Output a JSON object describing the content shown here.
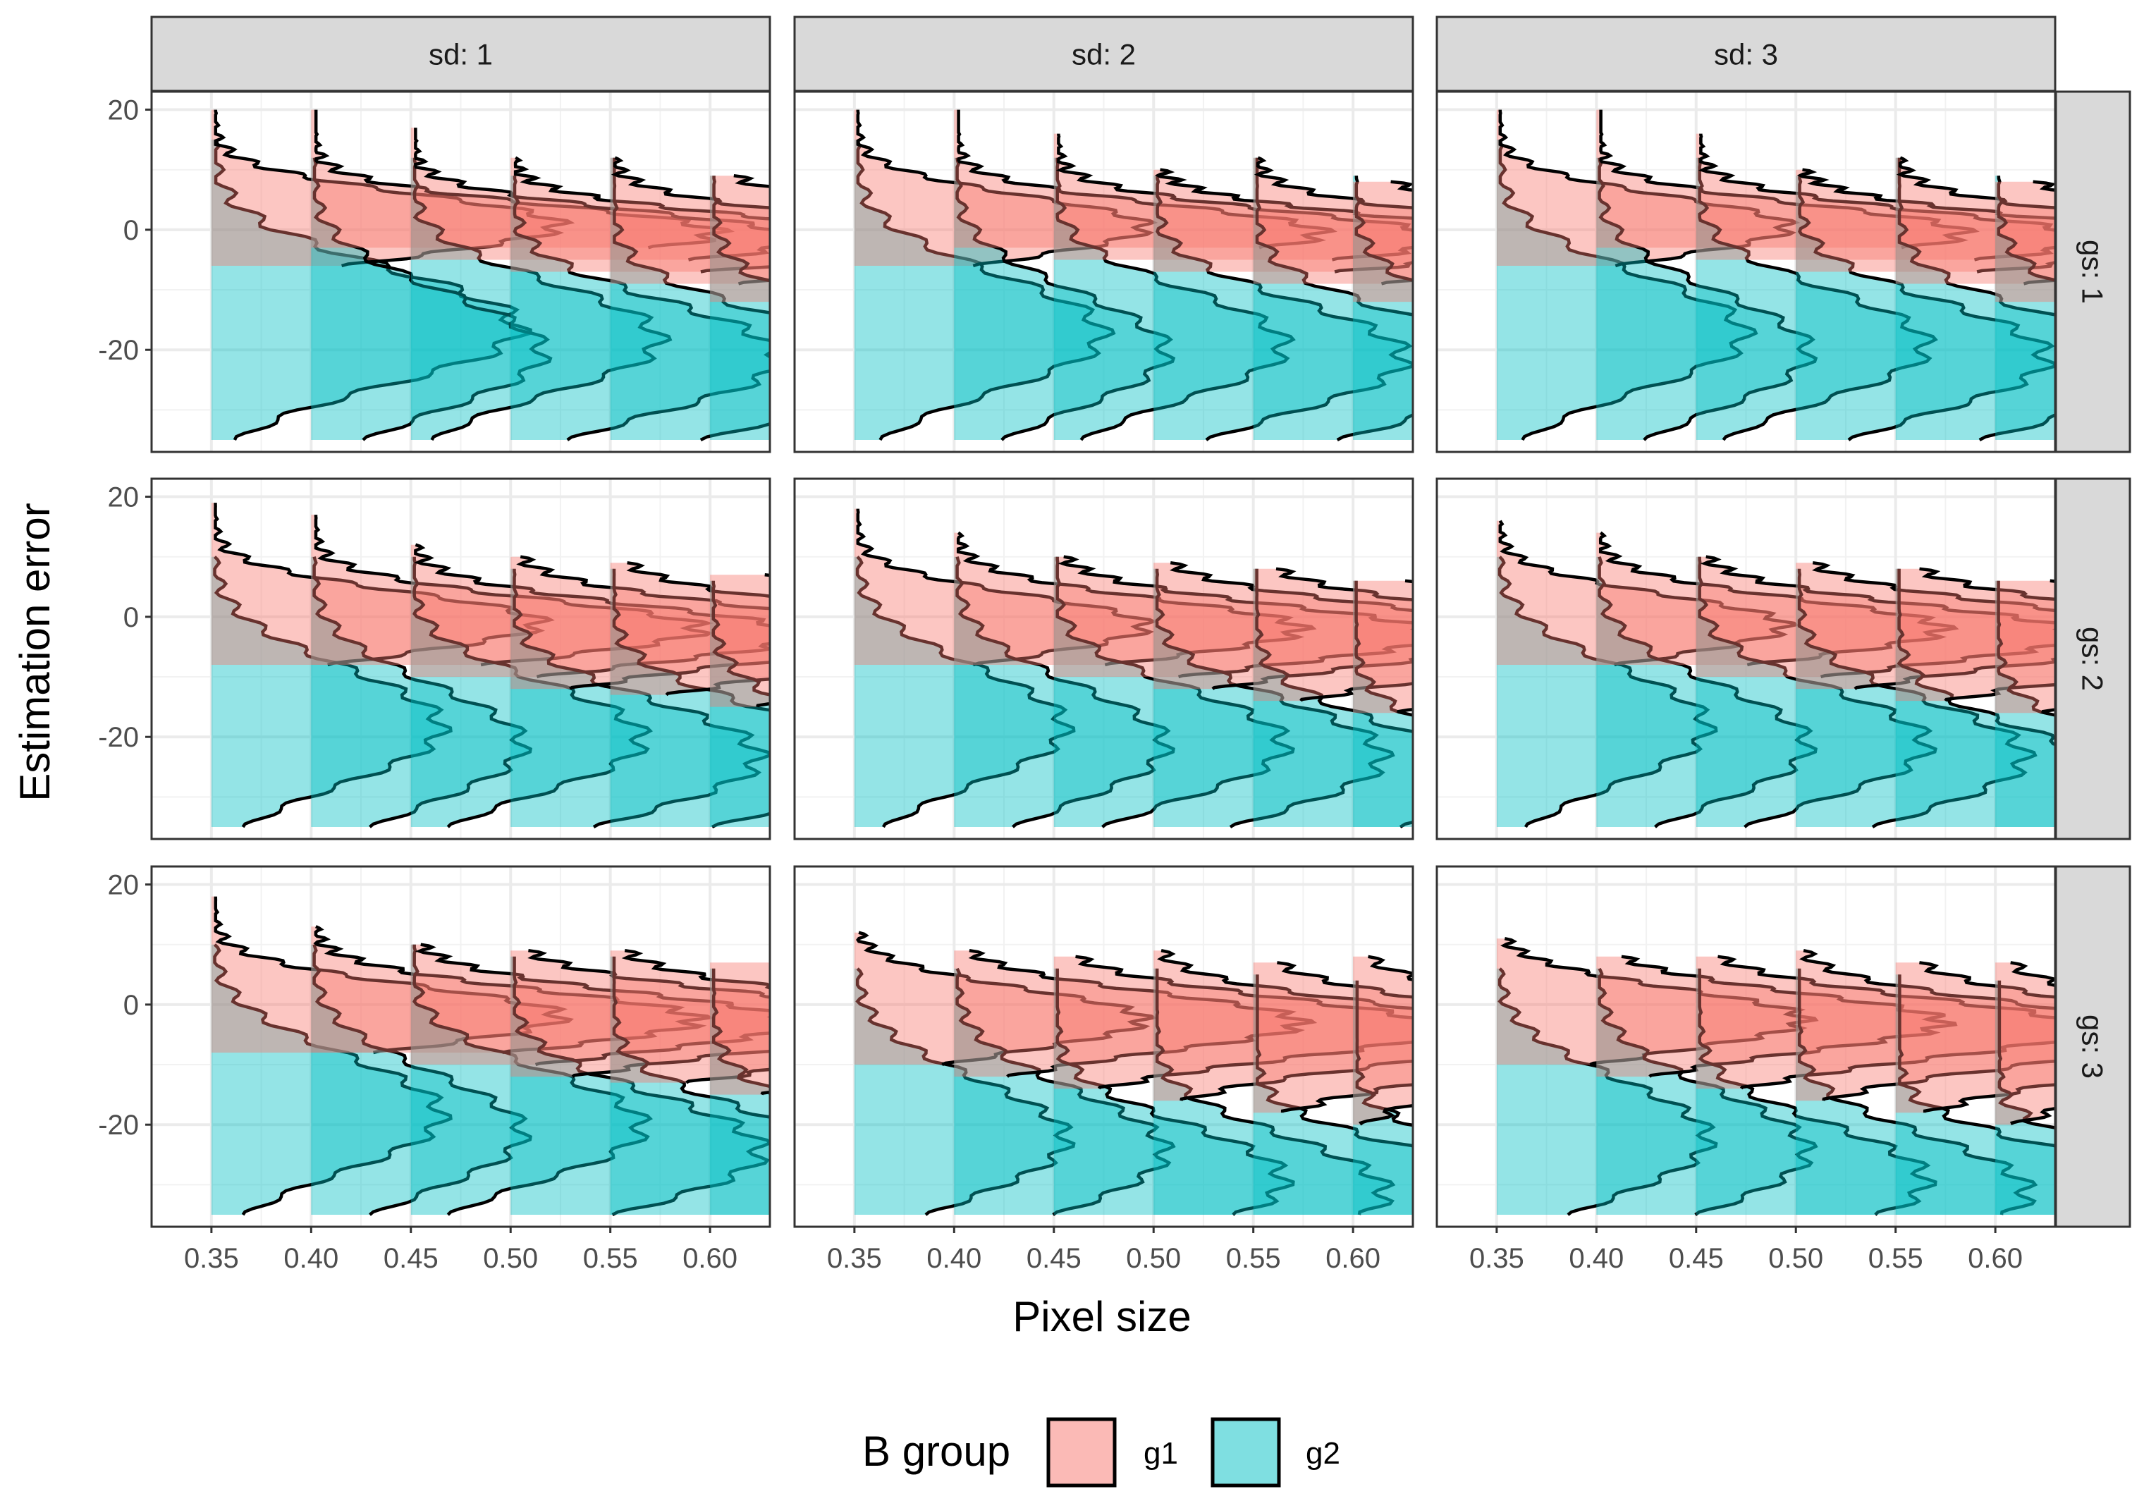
{
  "chart_data": {
    "type": "half-violin (faceted density)",
    "xlabel": "Pixel size",
    "ylabel": "Estimation error",
    "x": [
      0.35,
      0.4,
      0.45,
      0.5,
      0.55,
      0.6
    ],
    "x_tick_labels": [
      "0.35",
      "0.40",
      "0.45",
      "0.50",
      "0.55",
      "0.60"
    ],
    "ylim": [
      -37,
      23
    ],
    "y_ticks": [
      20,
      0,
      -20
    ],
    "y_tick_labels": [
      "20",
      "0",
      "-20"
    ],
    "grid": true,
    "facet_cols": [
      "sd: 1",
      "sd: 2",
      "sd: 3"
    ],
    "facet_rows": [
      "gs: 1",
      "gs: 2",
      "gs: 3"
    ],
    "legend": {
      "title": "B group",
      "position": "bottom",
      "entries": [
        {
          "name": "g1",
          "color": "#F8766D"
        },
        {
          "name": "g2",
          "color": "#00BFC4"
        }
      ]
    },
    "colors": {
      "g1": "#F8766D",
      "g2": "#00BFC4",
      "strip_bg": "#D9D9D9",
      "panel_border": "#333333",
      "grid": "#EBEBEB"
    },
    "panels": [
      {
        "col": 0,
        "row": 0,
        "g1": [
          [
            20,
            -6,
            0.8,
            5,
            0.18
          ],
          [
            20,
            -3,
            -0.5,
            4.5,
            0.21
          ],
          [
            17,
            -5,
            -1.5,
            4.5,
            0.2
          ],
          [
            12,
            -7,
            -2,
            4.2,
            0.21
          ],
          [
            12,
            -9,
            -2.5,
            4.5,
            0.2
          ],
          [
            9,
            -12,
            -3,
            5,
            0.22
          ]
        ],
        "g2": [
          [
            15,
            -35,
            -12,
            8,
            0.16
          ],
          [
            12,
            -35,
            -16,
            8,
            0.12
          ],
          [
            12,
            -35,
            -14,
            7,
            0.13
          ],
          [
            9,
            -35,
            -17,
            7,
            0.14
          ],
          [
            12,
            -35,
            -19,
            7,
            0.14
          ],
          [
            9,
            -35,
            -21,
            8,
            0.14
          ]
        ]
      },
      {
        "col": 1,
        "row": 0,
        "g1": [
          [
            20,
            -6,
            0.5,
            5,
            0.15
          ],
          [
            20,
            -3,
            -0.5,
            4.5,
            0.19
          ],
          [
            16,
            -5,
            -1.5,
            4.5,
            0.2
          ],
          [
            10,
            -7,
            -2,
            4.2,
            0.2
          ],
          [
            12,
            -9,
            -2.5,
            4.5,
            0.2
          ],
          [
            8,
            -12,
            -3,
            5,
            0.22
          ]
        ],
        "g2": [
          [
            15,
            -35,
            -13,
            8,
            0.13
          ],
          [
            12,
            -35,
            -16,
            8,
            0.11
          ],
          [
            12,
            -35,
            -15,
            7,
            0.12
          ],
          [
            9,
            -35,
            -17,
            7,
            0.13
          ],
          [
            12,
            -35,
            -19,
            7,
            0.13
          ],
          [
            9,
            -35,
            -20,
            8,
            0.12
          ]
        ]
      },
      {
        "col": 2,
        "row": 0,
        "g1": [
          [
            20,
            -6,
            0.5,
            5,
            0.15
          ],
          [
            20,
            -3,
            -0.5,
            4.5,
            0.19
          ],
          [
            16,
            -5,
            -1.5,
            4.5,
            0.2
          ],
          [
            10,
            -7,
            -2,
            4.2,
            0.2
          ],
          [
            12,
            -9,
            -2.5,
            4.5,
            0.2
          ],
          [
            8,
            -12,
            -3,
            5,
            0.22
          ]
        ],
        "g2": [
          [
            15,
            -35,
            -13,
            8,
            0.13
          ],
          [
            12,
            -35,
            -16,
            8,
            0.11
          ],
          [
            12,
            -35,
            -15,
            7,
            0.12
          ],
          [
            9,
            -35,
            -17,
            7,
            0.13
          ],
          [
            12,
            -35,
            -19,
            7,
            0.13
          ],
          [
            9,
            -35,
            -20,
            8,
            0.12
          ]
        ]
      },
      {
        "col": 0,
        "row": 1,
        "g1": [
          [
            19,
            -8,
            -1,
            5,
            0.17
          ],
          [
            17,
            -8,
            -2,
            4.8,
            0.2
          ],
          [
            12,
            -10,
            -3,
            4.8,
            0.2
          ],
          [
            10,
            -12,
            -3,
            4.8,
            0.2
          ],
          [
            9,
            -13,
            -3.5,
            5,
            0.2
          ],
          [
            7,
            -15,
            -4,
            5.5,
            0.21
          ]
        ],
        "g2": [
          [
            10,
            -35,
            -14,
            8,
            0.12
          ],
          [
            10,
            -35,
            -17,
            8,
            0.11
          ],
          [
            10,
            -35,
            -16,
            7,
            0.12
          ],
          [
            8,
            -35,
            -19,
            7,
            0.13
          ],
          [
            8,
            -35,
            -20,
            7,
            0.13
          ],
          [
            6,
            -35,
            -24,
            8,
            0.12
          ]
        ]
      },
      {
        "col": 1,
        "row": 1,
        "g1": [
          [
            18,
            -8,
            -1.5,
            5,
            0.15
          ],
          [
            14,
            -8,
            -2,
            4.8,
            0.18
          ],
          [
            10,
            -10,
            -3,
            4.8,
            0.2
          ],
          [
            9,
            -12,
            -3,
            4.8,
            0.2
          ],
          [
            8,
            -14,
            -4,
            5,
            0.21
          ],
          [
            6,
            -16,
            -5,
            5.5,
            0.2
          ]
        ],
        "g2": [
          [
            10,
            -35,
            -14,
            8,
            0.11
          ],
          [
            10,
            -35,
            -17,
            8,
            0.11
          ],
          [
            10,
            -35,
            -17,
            7,
            0.12
          ],
          [
            8,
            -35,
            -19,
            7,
            0.12
          ],
          [
            8,
            -35,
            -23,
            7,
            0.12
          ],
          [
            6,
            -35,
            -26,
            7,
            0.11
          ]
        ]
      },
      {
        "col": 2,
        "row": 1,
        "g1": [
          [
            16,
            -8,
            -1.5,
            5,
            0.15
          ],
          [
            14,
            -8,
            -2,
            4.8,
            0.18
          ],
          [
            10,
            -10,
            -3,
            4.8,
            0.2
          ],
          [
            9,
            -12,
            -3,
            4.8,
            0.2
          ],
          [
            8,
            -14,
            -4,
            5,
            0.22
          ],
          [
            6,
            -16,
            -5,
            5.5,
            0.21
          ]
        ],
        "g2": [
          [
            10,
            -35,
            -14,
            8,
            0.11
          ],
          [
            10,
            -35,
            -17,
            8,
            0.11
          ],
          [
            10,
            -35,
            -17,
            7,
            0.12
          ],
          [
            8,
            -35,
            -19,
            7,
            0.12
          ],
          [
            8,
            -35,
            -24,
            7,
            0.12
          ],
          [
            6,
            -35,
            -26,
            7,
            0.11
          ]
        ]
      },
      {
        "col": 0,
        "row": 2,
        "g1": [
          [
            18,
            -8,
            -2,
            5,
            0.18
          ],
          [
            13,
            -8,
            -2.5,
            4.8,
            0.2
          ],
          [
            10,
            -10,
            -3,
            4.8,
            0.2
          ],
          [
            9,
            -12,
            -3,
            4.8,
            0.21
          ],
          [
            9,
            -13,
            -4,
            5,
            0.22
          ],
          [
            7,
            -15,
            -4,
            5.5,
            0.23
          ]
        ],
        "g2": [
          [
            10,
            -35,
            -14,
            8,
            0.12
          ],
          [
            10,
            -35,
            -17,
            8,
            0.11
          ],
          [
            10,
            -35,
            -16,
            7,
            0.12
          ],
          [
            8,
            -35,
            -20,
            7,
            0.13
          ],
          [
            8,
            -35,
            -23,
            7,
            0.13
          ],
          [
            6,
            -35,
            -26,
            8,
            0.13
          ]
        ]
      },
      {
        "col": 1,
        "row": 2,
        "g1": [
          [
            12,
            -10,
            -2.5,
            5,
            0.15
          ],
          [
            9,
            -12,
            -3,
            4.8,
            0.18
          ],
          [
            8,
            -14,
            -4,
            5,
            0.2
          ],
          [
            9,
            -16,
            -5,
            5,
            0.2
          ],
          [
            7,
            -18,
            -6,
            5.5,
            0.2
          ],
          [
            8,
            -20,
            -6,
            5.5,
            0.2
          ]
        ],
        "g2": [
          [
            6,
            -35,
            -18,
            8,
            0.11
          ],
          [
            6,
            -35,
            -20,
            8,
            0.11
          ],
          [
            6,
            -35,
            -25,
            7,
            0.12
          ],
          [
            6,
            -35,
            -27,
            7,
            0.12
          ],
          [
            5,
            -35,
            -28,
            6,
            0.13
          ],
          [
            4,
            -35,
            -29,
            6,
            0.13
          ]
        ]
      },
      {
        "col": 2,
        "row": 2,
        "g1": [
          [
            11,
            -10,
            -2.5,
            5,
            0.16
          ],
          [
            8,
            -12,
            -3,
            4.8,
            0.18
          ],
          [
            8,
            -14,
            -4,
            5,
            0.2
          ],
          [
            9,
            -16,
            -5,
            5,
            0.2
          ],
          [
            7,
            -18,
            -6,
            5.5,
            0.2
          ],
          [
            7,
            -20,
            -7,
            5.5,
            0.2
          ]
        ],
        "g2": [
          [
            6,
            -35,
            -18,
            8,
            0.11
          ],
          [
            6,
            -35,
            -20,
            8,
            0.11
          ],
          [
            6,
            -35,
            -25,
            7,
            0.12
          ],
          [
            6,
            -35,
            -27,
            7,
            0.12
          ],
          [
            5,
            -35,
            -28,
            6,
            0.13
          ],
          [
            4,
            -35,
            -30,
            6,
            0.13
          ]
        ]
      }
    ]
  }
}
